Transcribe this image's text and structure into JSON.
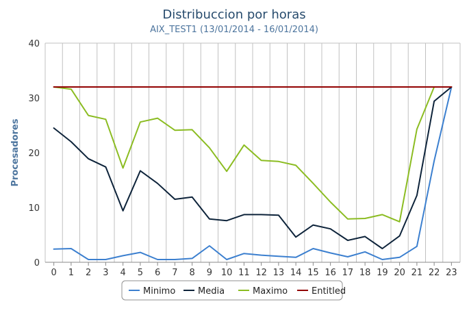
{
  "chart_data": {
    "type": "line",
    "title": "Distribuccion por horas",
    "subtitle": "AIX_TEST1 (13/01/2014 - 16/01/2014)",
    "xlabel": "",
    "ylabel": "Procesadores",
    "x": [
      0,
      1,
      2,
      3,
      4,
      5,
      6,
      7,
      8,
      9,
      10,
      11,
      12,
      13,
      14,
      15,
      16,
      17,
      18,
      19,
      20,
      21,
      22,
      23
    ],
    "ylim": [
      0,
      40
    ],
    "yticks": [
      0,
      10,
      20,
      30,
      40
    ],
    "grid": "vertical-by-category",
    "legend_position": "bottom-center",
    "series": [
      {
        "name": "Minimo",
        "color": "#3b7fcf",
        "values": [
          2.4,
          2.5,
          0.5,
          0.5,
          1.2,
          1.8,
          0.5,
          0.5,
          0.7,
          3.0,
          0.5,
          1.6,
          1.3,
          1.1,
          0.9,
          2.5,
          1.7,
          1.0,
          1.9,
          0.5,
          0.9,
          2.9,
          18.5,
          32.0
        ]
      },
      {
        "name": "Media",
        "color": "#0d233a",
        "values": [
          24.5,
          22.0,
          18.9,
          17.4,
          9.4,
          16.7,
          14.4,
          11.5,
          11.9,
          7.9,
          7.6,
          8.7,
          8.7,
          8.6,
          4.6,
          6.8,
          6.1,
          4.0,
          4.7,
          2.5,
          4.8,
          12.2,
          29.4,
          32.0
        ]
      },
      {
        "name": "Maximo",
        "color": "#8bbc21",
        "values": [
          32.0,
          31.6,
          26.8,
          26.1,
          17.2,
          25.6,
          26.3,
          24.1,
          24.2,
          20.9,
          16.6,
          21.4,
          18.6,
          18.4,
          17.7,
          14.4,
          11.0,
          7.9,
          8.0,
          8.7,
          7.4,
          24.3,
          32.0,
          32.0
        ]
      },
      {
        "name": "Entitled",
        "color": "#910000",
        "values": [
          32,
          32,
          32,
          32,
          32,
          32,
          32,
          32,
          32,
          32,
          32,
          32,
          32,
          32,
          32,
          32,
          32,
          32,
          32,
          32,
          32,
          32,
          32,
          32
        ]
      }
    ]
  }
}
